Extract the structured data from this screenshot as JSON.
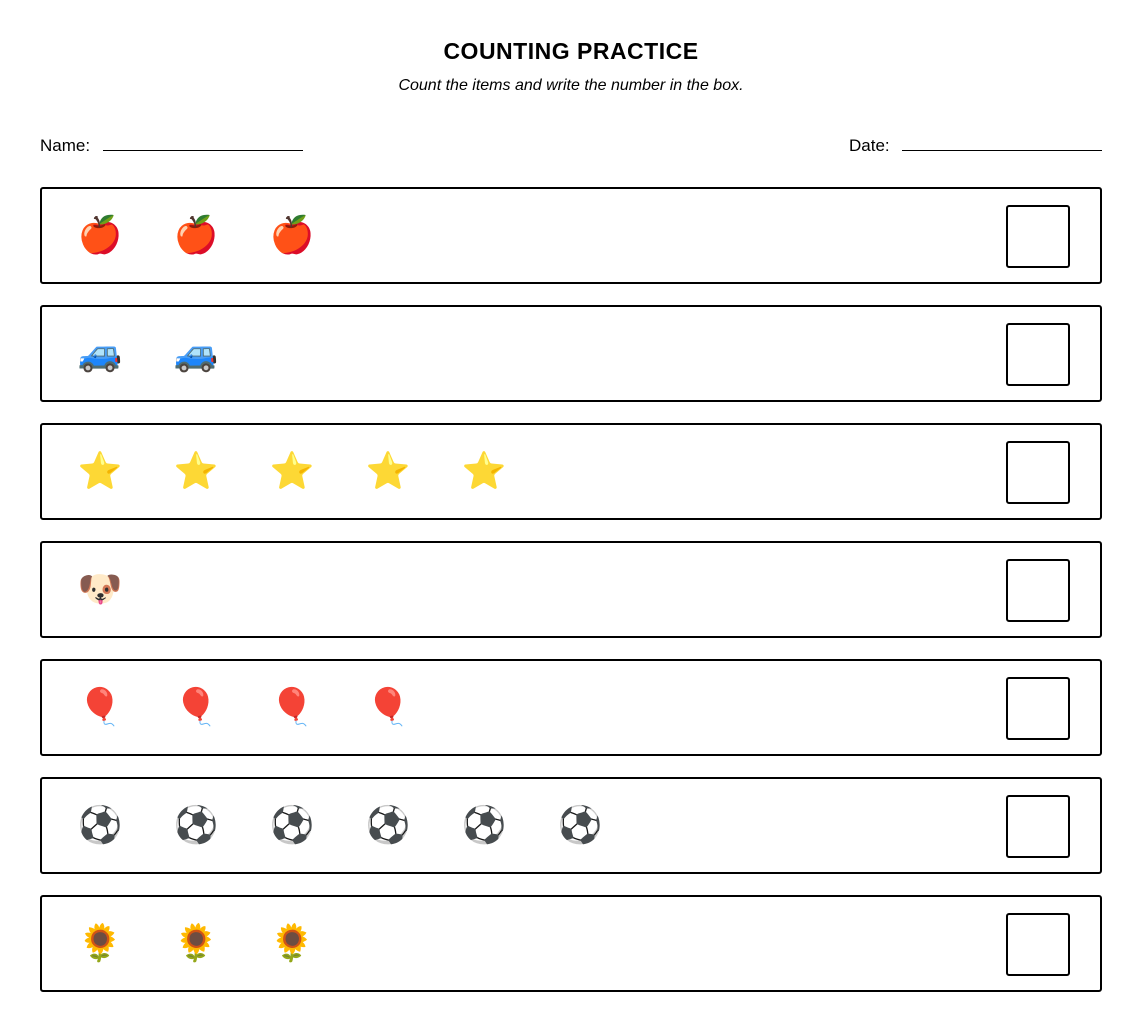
{
  "header": {
    "title": "COUNTING PRACTICE",
    "subtitle": "Count the items and write the number in the box."
  },
  "fields": {
    "name": "Name:",
    "date": "Date:"
  },
  "rows": [
    {
      "icon": "🍎",
      "count": 3
    },
    {
      "icon": "🚙",
      "count": 2
    },
    {
      "icon": "⭐",
      "count": 5
    },
    {
      "icon": "🐶",
      "count": 1
    },
    {
      "icon": "🎈",
      "count": 4
    },
    {
      "icon": "⚽",
      "count": 6
    },
    {
      "icon": "🌻",
      "count": 3
    }
  ]
}
